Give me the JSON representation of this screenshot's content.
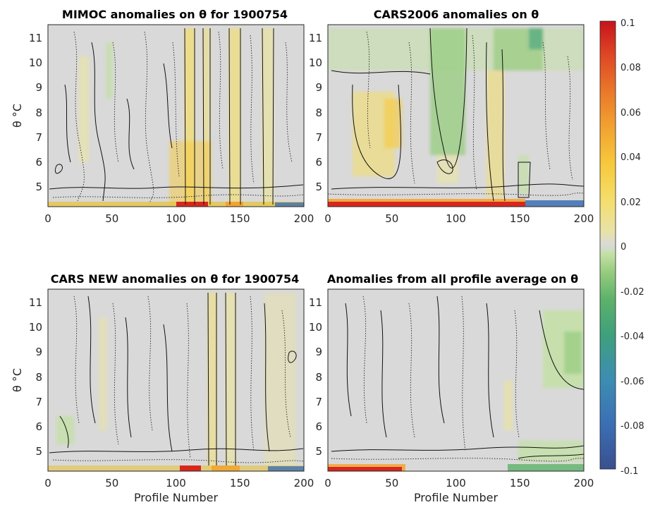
{
  "figure": {
    "colorbar": {
      "ticks": [
        "0.1",
        "0.08",
        "0.06",
        "0.04",
        "0.02",
        "0",
        "-0.02",
        "-0.04",
        "-0.06",
        "-0.08",
        "-0.1"
      ],
      "range": [
        -0.1,
        0.1
      ],
      "colormap": [
        "#3a4f8f",
        "#3b6fb4",
        "#3d8db3",
        "#3ea07c",
        "#5db26a",
        "#97cc7f",
        "#c3e0a6",
        "#d9d9d9",
        "#e8e2a8",
        "#f4de6c",
        "#f7c93c",
        "#f2a431",
        "#ea7a2a",
        "#df4a25",
        "#c7131b"
      ]
    },
    "x_ticks": [
      "0",
      "50",
      "100",
      "150",
      "200"
    ],
    "y_ticks": [
      "5",
      "6",
      "7",
      "8",
      "9",
      "10",
      "11"
    ]
  },
  "chart_data": [
    {
      "type": "heatmap",
      "title": "MIMOC anomalies on θ  for 1900754",
      "xlabel": "",
      "ylabel": "θ °C",
      "xlim": [
        0,
        200
      ],
      "ylim": [
        4.2,
        11.5
      ],
      "field_description": "mostly near-zero grey; yellow positive bands near profiles 107-115, 122-128, 142-150, 170-180; red strip at bottom near profiles 100-125",
      "contours": {
        "solid": 0.01,
        "dotted": -0.01
      }
    },
    {
      "type": "heatmap",
      "title": "CARS2006 anomalies on θ",
      "xlabel": "",
      "ylabel": "",
      "xlim": [
        0,
        200
      ],
      "ylim": [
        4.2,
        11.5
      ],
      "field_description": "green negative regions near profiles 80-105 and 150-170 upper levels; yellow positive patches near profiles 20-60 mid levels and 125-135; red/orange strip at bottom 0-150; blue strip at bottom near 150-200",
      "contours": {
        "solid": 0.01,
        "dotted": -0.01
      }
    },
    {
      "type": "heatmap",
      "title": "CARS NEW anomalies on θ for 1900754",
      "xlabel": "Profile Number",
      "ylabel": "θ °C",
      "xlim": [
        0,
        200
      ],
      "ylim": [
        4.2,
        11.5
      ],
      "field_description": "mostly near-zero grey; light yellow bands near profiles 125-130 and 140-147; red strip near bottom around 105-120",
      "contours": {
        "solid": 0.01,
        "dotted": -0.01
      }
    },
    {
      "type": "heatmap",
      "title": "Anomalies from all profile average on θ",
      "xlabel": "Profile Number",
      "ylabel": "",
      "xlim": [
        0,
        200
      ],
      "ylim": [
        4.2,
        11.5
      ],
      "field_description": "mostly grey; light green patch upper right near profiles 170-200; light yellow near profile 140; red/orange strip at bottom 0-75; green strip at bottom 140-200",
      "contours": {
        "solid": 0.01,
        "dotted": -0.01
      }
    }
  ]
}
